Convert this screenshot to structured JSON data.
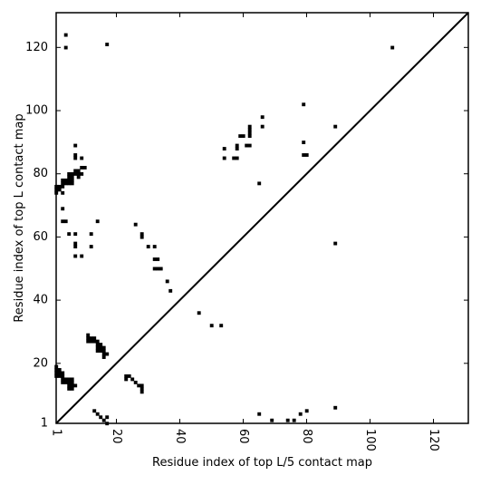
{
  "chart_data": {
    "type": "heatmap",
    "title": "",
    "xlabel": "Residue index of top L/5 contact map",
    "ylabel": "Residue index of top L contact map",
    "xlim": [
      1,
      131
    ],
    "ylim": [
      1,
      131
    ],
    "x_ticks": [
      1,
      20,
      40,
      60,
      80,
      100,
      120
    ],
    "y_ticks": [
      1,
      20,
      40,
      60,
      80,
      100,
      120
    ],
    "x_tick_labels": [
      "1",
      "20",
      "40",
      "60",
      "80",
      "100",
      "120"
    ],
    "y_tick_labels": [
      "1",
      "20",
      "40",
      "60",
      "80",
      "100",
      "120"
    ],
    "x_tick_label_rotation": 90,
    "diagonal": true,
    "colors": {
      "contact": "#000000",
      "background": "#ffffff",
      "axis": "#000000"
    },
    "series": [
      {
        "region": "upper-left triangle (top L contact map)",
        "points": [
          [
            1,
            74
          ],
          [
            1,
            75
          ],
          [
            1,
            76
          ],
          [
            2,
            75
          ],
          [
            2,
            76
          ],
          [
            3,
            74
          ],
          [
            3,
            76
          ],
          [
            3,
            77
          ],
          [
            3,
            78
          ],
          [
            4,
            77
          ],
          [
            4,
            78
          ],
          [
            5,
            77
          ],
          [
            5,
            78
          ],
          [
            5,
            79
          ],
          [
            5,
            80
          ],
          [
            6,
            77
          ],
          [
            6,
            78
          ],
          [
            6,
            79
          ],
          [
            6,
            80
          ],
          [
            7,
            80
          ],
          [
            7,
            81
          ],
          [
            8,
            79
          ],
          [
            8,
            80
          ],
          [
            8,
            81
          ],
          [
            9,
            80
          ],
          [
            9,
            82
          ],
          [
            10,
            82
          ],
          [
            7,
            85
          ],
          [
            7,
            86
          ],
          [
            9,
            85
          ],
          [
            7,
            89
          ],
          [
            4,
            65
          ],
          [
            3,
            65
          ],
          [
            3,
            69
          ],
          [
            5,
            61
          ],
          [
            7,
            61
          ],
          [
            7,
            57
          ],
          [
            7,
            58
          ],
          [
            7,
            54
          ],
          [
            9,
            54
          ],
          [
            12,
            57
          ],
          [
            12,
            61
          ],
          [
            14,
            65
          ],
          [
            4,
            120
          ],
          [
            4,
            124
          ],
          [
            17,
            121
          ],
          [
            107,
            120
          ],
          [
            1,
            16
          ],
          [
            1,
            17
          ],
          [
            1,
            18
          ],
          [
            1,
            19
          ],
          [
            2,
            16
          ],
          [
            2,
            17
          ],
          [
            2,
            18
          ],
          [
            3,
            14
          ],
          [
            3,
            15
          ],
          [
            3,
            16
          ],
          [
            3,
            17
          ],
          [
            4,
            14
          ],
          [
            4,
            15
          ],
          [
            5,
            12
          ],
          [
            5,
            13
          ],
          [
            5,
            14
          ],
          [
            5,
            15
          ],
          [
            6,
            12
          ],
          [
            6,
            13
          ],
          [
            6,
            14
          ],
          [
            6,
            15
          ],
          [
            7,
            13
          ],
          [
            11,
            27
          ],
          [
            11,
            28
          ],
          [
            11,
            29
          ],
          [
            12,
            27
          ],
          [
            12,
            28
          ],
          [
            13,
            27
          ],
          [
            13,
            28
          ],
          [
            14,
            24
          ],
          [
            14,
            25
          ],
          [
            14,
            26
          ],
          [
            14,
            27
          ],
          [
            15,
            24
          ],
          [
            15,
            25
          ],
          [
            15,
            26
          ],
          [
            16,
            22
          ],
          [
            16,
            23
          ],
          [
            16,
            24
          ],
          [
            16,
            25
          ],
          [
            17,
            23
          ],
          [
            23,
            15
          ],
          [
            23,
            16
          ],
          [
            24,
            16
          ],
          [
            25,
            15
          ],
          [
            26,
            14
          ],
          [
            27,
            13
          ],
          [
            28,
            11
          ],
          [
            28,
            12
          ],
          [
            28,
            13
          ],
          [
            13,
            5
          ],
          [
            14,
            4
          ],
          [
            15,
            3
          ],
          [
            16,
            2
          ],
          [
            17,
            1
          ],
          [
            17,
            3
          ],
          [
            26,
            64
          ],
          [
            28,
            60
          ],
          [
            28,
            61
          ],
          [
            30,
            57
          ],
          [
            32,
            57
          ],
          [
            32,
            53
          ],
          [
            33,
            53
          ],
          [
            32,
            50
          ],
          [
            33,
            50
          ],
          [
            34,
            50
          ],
          [
            36,
            46
          ],
          [
            37,
            43
          ],
          [
            46,
            36
          ],
          [
            50,
            32
          ],
          [
            53,
            32
          ],
          [
            54,
            85
          ],
          [
            54,
            88
          ],
          [
            57,
            85
          ],
          [
            58,
            85
          ],
          [
            58,
            88
          ],
          [
            58,
            89
          ],
          [
            59,
            92
          ],
          [
            60,
            92
          ],
          [
            61,
            89
          ],
          [
            62,
            89
          ],
          [
            62,
            92
          ],
          [
            62,
            93
          ],
          [
            62,
            94
          ],
          [
            62,
            95
          ],
          [
            65,
            77
          ],
          [
            66,
            95
          ],
          [
            66,
            98
          ],
          [
            79,
            102
          ],
          [
            79,
            90
          ],
          [
            79,
            86
          ],
          [
            80,
            86
          ],
          [
            89,
            95
          ],
          [
            89,
            58
          ],
          [
            65,
            4
          ],
          [
            69,
            2
          ],
          [
            74,
            2
          ],
          [
            76,
            2
          ],
          [
            78,
            4
          ],
          [
            80,
            5
          ],
          [
            89,
            6
          ]
        ]
      }
    ]
  }
}
